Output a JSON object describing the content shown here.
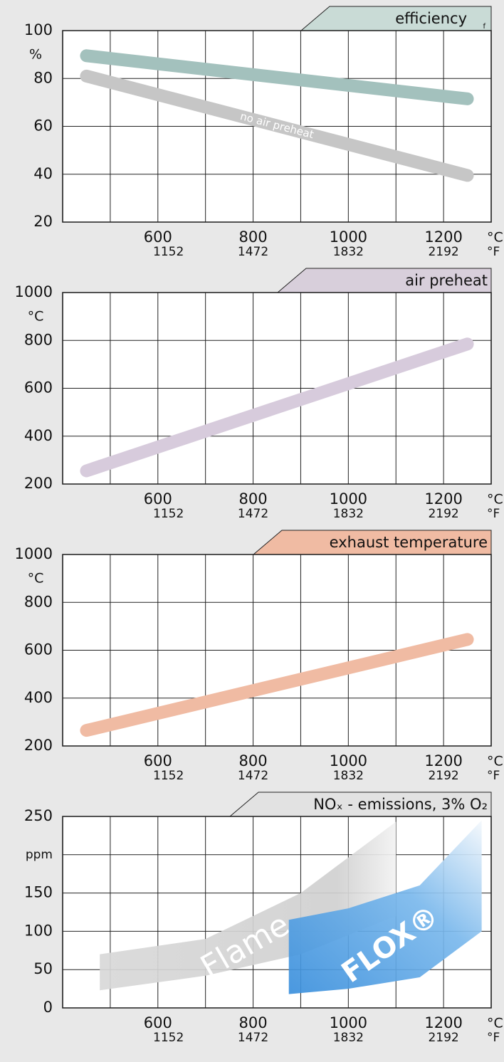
{
  "chart_data": [
    {
      "type": "line",
      "title": "efficiency",
      "note": "f",
      "tab_color": "#c9dbd6",
      "y_unit": "%",
      "xlabel": "°C",
      "x2label": "°F",
      "xlim": [
        400,
        1300
      ],
      "xticks": [
        {
          "value": 500,
          "label": null
        },
        600,
        {
          "value": 700,
          "label": null
        },
        800,
        {
          "value": 900,
          "label": null
        },
        1000,
        {
          "value": 1100,
          "label": null
        },
        1200
      ],
      "x2lim": [
        752,
        2372
      ],
      "x2ticks": [
        1152,
        1472,
        1832,
        2192
      ],
      "ylim": [
        20,
        100
      ],
      "yticks": [
        20,
        40,
        60,
        80,
        100
      ],
      "x": [
        450,
        1250
      ],
      "series": [
        {
          "color": "#a3c1bd",
          "values": [
            89.5,
            71.5
          ]
        },
        {
          "name": "no air preheat",
          "color": "#c6c6c6",
          "values": [
            81,
            39.5
          ]
        }
      ]
    },
    {
      "type": "line",
      "title": "air preheat",
      "tab_color": "#d8cfdb",
      "y_unit": "°C",
      "xlabel": "°C",
      "x2label": "°F",
      "xlim": [
        400,
        1300
      ],
      "xticks": [
        {
          "value": 500,
          "label": null
        },
        600,
        {
          "value": 700,
          "label": null
        },
        800,
        {
          "value": 900,
          "label": null
        },
        1000,
        {
          "value": 1100,
          "label": null
        },
        1200
      ],
      "x2lim": [
        752,
        2372
      ],
      "x2ticks": [
        1152,
        1472,
        1832,
        2192
      ],
      "ylim": [
        200,
        1000
      ],
      "yticks": [
        200,
        400,
        600,
        800,
        1000
      ],
      "x": [
        450,
        1250
      ],
      "series": [
        {
          "color": "#d7cbdc",
          "values": [
            255,
            785
          ]
        }
      ]
    },
    {
      "type": "line",
      "title": "exhaust temperature",
      "tab_color": "#f0bba3",
      "y_unit": "°C",
      "xlabel": "°C",
      "x2label": "°F",
      "xlim": [
        400,
        1300
      ],
      "xticks": [
        {
          "value": 500,
          "label": null
        },
        600,
        {
          "value": 700,
          "label": null
        },
        800,
        {
          "value": 900,
          "label": null
        },
        1000,
        {
          "value": 1100,
          "label": null
        },
        1200
      ],
      "x2lim": [
        752,
        2372
      ],
      "x2ticks": [
        1152,
        1472,
        1832,
        2192
      ],
      "ylim": [
        200,
        1000
      ],
      "yticks": [
        200,
        400,
        600,
        800,
        1000
      ],
      "x": [
        450,
        1250
      ],
      "series": [
        {
          "color": "#f0bba3",
          "values": [
            265,
            645
          ]
        }
      ]
    },
    {
      "type": "area",
      "title": "NOₓ - emissions, 3% O₂",
      "tab_color": "#e2e2e2",
      "xlabel": "°C",
      "x2label": "°F",
      "xlim": [
        400,
        1300
      ],
      "xticks": [
        {
          "value": 500,
          "label": null
        },
        600,
        {
          "value": 700,
          "label": null
        },
        800,
        {
          "value": 900,
          "label": null
        },
        1000,
        {
          "value": 1100,
          "label": null
        },
        1200
      ],
      "x2lim": [
        752,
        2372
      ],
      "x2ticks": [
        1152,
        1472,
        1832,
        2192
      ],
      "ylim": [
        0,
        250
      ],
      "yticks": [
        0,
        50,
        100,
        150,
        {
          "value": 200,
          "label": "ppm"
        },
        250
      ],
      "series": [
        {
          "name": "Flame",
          "color": "#d4d4d4",
          "x": [
            478,
            700,
            900,
            1100
          ],
          "upper": [
            70,
            90,
            150,
            243
          ],
          "lower": [
            23,
            42,
            70,
            120
          ]
        },
        {
          "name": "FLOX®",
          "color": "#4a9be0",
          "x": [
            875,
            1000,
            1150,
            1280
          ],
          "upper": [
            115,
            130,
            160,
            245
          ],
          "lower": [
            18,
            25,
            40,
            100
          ]
        }
      ]
    }
  ]
}
